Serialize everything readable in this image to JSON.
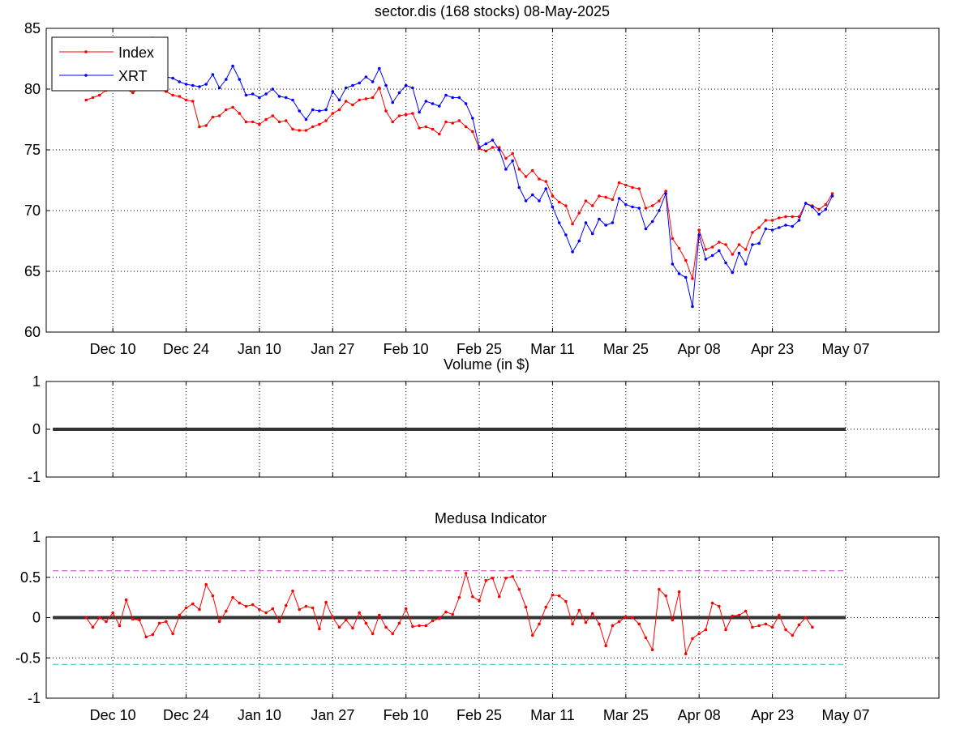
{
  "figure": {
    "title": "sector.dis (168 stocks)   08-May-2025"
  },
  "colors": {
    "index": "#ff0000",
    "xrt": "#0000ff",
    "medusa": "#ff0000",
    "zero": "#333333",
    "upper": "#cc33cc",
    "lower": "#33bbbb"
  },
  "chart_data": [
    {
      "type": "line",
      "panel": "price",
      "title": "sector.dis (168 stocks)   08-May-2025",
      "xlabel": "",
      "ylabel": "",
      "ylim": [
        60,
        85
      ],
      "yticks": [
        60,
        65,
        70,
        75,
        80,
        85
      ],
      "xlim": [
        -6,
        128
      ],
      "xtick_labels": [
        "Dec 10",
        "Dec 24",
        "Jan 10",
        "Jan 27",
        "Feb 10",
        "Feb 25",
        "Mar 11",
        "Mar 25",
        "Apr 08",
        "Apr 23",
        "May 07"
      ],
      "xtick_pos": [
        4,
        15,
        26,
        37,
        48,
        59,
        70,
        81,
        92,
        103,
        114
      ],
      "grid": true,
      "legend": "top-left",
      "series": [
        {
          "name": "Index",
          "values": [
            79.1,
            79.3,
            79.5,
            79.9,
            80.1,
            80.3,
            80.0,
            79.7,
            80.1,
            80.4,
            80.2,
            80.0,
            79.8,
            79.5,
            79.4,
            79.1,
            79.0,
            76.9,
            77.0,
            77.7,
            77.8,
            78.3,
            78.5,
            78.0,
            77.3,
            77.3,
            77.1,
            77.5,
            77.8,
            77.3,
            77.4,
            76.7,
            76.6,
            76.6,
            76.9,
            77.1,
            77.4,
            78.0,
            78.3,
            79.0,
            78.7,
            79.1,
            79.2,
            79.3,
            80.1,
            78.2,
            77.3,
            77.8,
            77.9,
            78.0,
            76.8,
            76.9,
            76.7,
            76.3,
            77.3,
            77.2,
            77.4,
            76.9,
            76.5,
            75.1,
            74.9,
            75.2,
            75.2,
            74.3,
            74.7,
            73.4,
            72.8,
            73.3,
            72.6,
            72.4,
            71.2,
            70.7,
            70.4,
            68.9,
            69.8,
            70.8,
            70.4,
            71.2,
            71.1,
            70.9,
            72.3,
            72.1,
            71.9,
            71.8,
            70.2,
            70.4,
            70.8,
            71.6,
            67.7,
            66.9,
            65.9,
            64.4,
            68.4,
            66.8,
            67.0,
            67.4,
            67.2,
            66.4,
            67.2,
            66.8,
            68.2,
            68.6,
            69.2,
            69.2,
            69.4,
            69.5,
            69.5,
            69.5,
            70.6,
            70.4,
            70.1,
            70.5,
            71.4
          ]
        },
        {
          "name": "XRT",
          "values": [
            82.8,
            82.9,
            83.0,
            83.1,
            83.0,
            83.1,
            82.2,
            81.9,
            82.3,
            82.2,
            84.2,
            81.8,
            81.0,
            80.9,
            80.6,
            80.4,
            80.3,
            80.2,
            80.4,
            81.2,
            80.1,
            80.8,
            81.9,
            80.8,
            79.5,
            79.6,
            79.3,
            79.6,
            80.0,
            79.4,
            79.3,
            79.1,
            78.2,
            77.5,
            78.3,
            78.2,
            78.3,
            79.8,
            79.1,
            80.1,
            80.3,
            80.5,
            81.0,
            80.6,
            81.7,
            80.3,
            78.9,
            79.7,
            80.3,
            80.1,
            78.1,
            79.0,
            78.8,
            78.6,
            79.5,
            79.3,
            79.3,
            78.8,
            77.6,
            75.2,
            75.5,
            75.8,
            75.0,
            73.4,
            74.1,
            71.9,
            70.8,
            71.3,
            70.8,
            71.8,
            70.3,
            69.0,
            68.0,
            66.6,
            67.5,
            69.0,
            68.1,
            69.3,
            68.8,
            69.0,
            71.0,
            70.5,
            70.3,
            70.2,
            68.5,
            69.1,
            70.0,
            71.4,
            65.6,
            64.8,
            64.5,
            62.1,
            68.0,
            66.0,
            66.3,
            66.7,
            65.7,
            64.9,
            66.5,
            65.6,
            67.2,
            67.3,
            68.5,
            68.4,
            68.6,
            68.8,
            68.7,
            69.2,
            70.6,
            70.3,
            69.7,
            70.1,
            71.2
          ]
        }
      ]
    },
    {
      "type": "line",
      "panel": "volume",
      "title": "Volume (in $)",
      "xlabel": "",
      "ylabel": "",
      "ylim": [
        -1,
        1
      ],
      "yticks": [
        -1,
        0,
        1
      ],
      "xlim": [
        -6,
        128
      ],
      "grid": true,
      "series": [
        {
          "values": [
            0,
            0
          ],
          "x": [
            -5,
            114
          ]
        }
      ]
    },
    {
      "type": "line",
      "panel": "medusa",
      "title": "Medusa Indicator",
      "xlabel": "",
      "ylabel": "",
      "ylim": [
        -1,
        1
      ],
      "yticks": [
        -1,
        -0.5,
        0,
        0.5,
        1
      ],
      "xlim": [
        -6,
        128
      ],
      "xtick_labels": [
        "Dec 10",
        "Dec 24",
        "Jan 10",
        "Jan 27",
        "Feb 10",
        "Feb 25",
        "Mar 11",
        "Mar 25",
        "Apr 08",
        "Apr 23",
        "May 07"
      ],
      "xtick_pos": [
        4,
        15,
        26,
        37,
        48,
        59,
        70,
        81,
        92,
        103,
        114
      ],
      "grid": true,
      "reference_lines": {
        "upper": 0.58,
        "lower": -0.58,
        "zero": 0
      },
      "series": [
        {
          "values": [
            0.0,
            -0.12,
            0.0,
            -0.05,
            0.06,
            -0.1,
            0.22,
            -0.02,
            -0.03,
            -0.24,
            -0.21,
            -0.07,
            -0.05,
            -0.2,
            0.03,
            0.12,
            0.17,
            0.1,
            0.41,
            0.27,
            -0.05,
            0.08,
            0.25,
            0.18,
            0.14,
            0.16,
            0.1,
            0.06,
            0.11,
            -0.05,
            0.15,
            0.33,
            0.1,
            0.14,
            0.12,
            -0.14,
            0.19,
            0.0,
            -0.12,
            -0.03,
            -0.13,
            0.06,
            -0.07,
            -0.2,
            0.03,
            -0.12,
            -0.2,
            -0.07,
            0.11,
            -0.11,
            -0.1,
            -0.1,
            -0.04,
            -0.01,
            0.07,
            0.04,
            0.25,
            0.55,
            0.26,
            0.21,
            0.46,
            0.49,
            0.26,
            0.49,
            0.51,
            0.35,
            0.13,
            -0.22,
            -0.08,
            0.13,
            0.28,
            0.27,
            0.2,
            -0.08,
            0.09,
            -0.06,
            0.05,
            -0.08,
            -0.35,
            -0.1,
            -0.05,
            0.01,
            0.0,
            -0.08,
            -0.25,
            -0.4,
            0.35,
            0.27,
            -0.03,
            0.32,
            -0.45,
            -0.26,
            -0.2,
            -0.15,
            0.18,
            0.14,
            -0.15,
            0.02,
            0.03,
            0.08,
            -0.12,
            -0.1,
            -0.08,
            -0.12,
            0.03,
            -0.15,
            -0.22,
            -0.09,
            0.0,
            -0.12
          ]
        }
      ]
    }
  ]
}
